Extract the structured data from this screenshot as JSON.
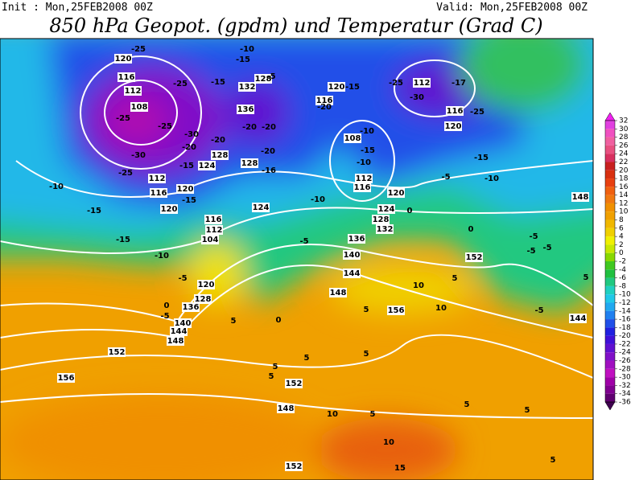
{
  "header": {
    "init": "Init : Mon,25FEB2008 00Z",
    "valid": "Valid: Mon,25FEB2008 00Z",
    "title": "850 hPa Geopot. (gpdm) und Temperatur (Grad C)"
  },
  "colorbar": {
    "ticks": [
      32,
      30,
      28,
      26,
      24,
      22,
      20,
      18,
      16,
      14,
      12,
      10,
      8,
      6,
      4,
      2,
      0,
      -2,
      -4,
      -6,
      -8,
      -10,
      -12,
      -14,
      -16,
      -18,
      -20,
      -22,
      -24,
      -26,
      -28,
      -30,
      -32,
      -34,
      -36
    ],
    "colors": [
      "#f020f0",
      "#e040e0",
      "#f050c0",
      "#f060a0",
      "#e85080",
      "#d83060",
      "#c82020",
      "#d83010",
      "#e84010",
      "#f06010",
      "#f07810",
      "#f09000",
      "#f0a000",
      "#f0b800",
      "#f0d000",
      "#f0f000",
      "#c8e800",
      "#88d800",
      "#40c820",
      "#20c040",
      "#20c880",
      "#20d0c0",
      "#20c8e8",
      "#20a8f0",
      "#2080f0",
      "#2050e8",
      "#2020e0",
      "#4010d8",
      "#6010d0",
      "#8010c8",
      "#a010c0",
      "#c010c0",
      "#a000a8",
      "#800090",
      "#600070",
      "#400050"
    ]
  },
  "geopotential_labels": [
    120,
    116,
    112,
    108,
    112,
    116,
    120,
    120,
    124,
    128,
    124,
    116,
    112,
    104,
    120,
    128,
    136,
    140,
    144,
    148,
    152,
    156,
    152,
    148,
    152,
    132,
    128,
    136,
    128,
    120,
    116,
    112,
    116,
    120,
    108,
    112,
    116,
    120,
    124,
    128,
    132,
    136,
    140,
    144,
    148,
    152,
    156,
    148,
    144
  ],
  "temperature_labels": [
    -25,
    -10,
    -15,
    -5,
    -25,
    -15,
    -25,
    -25,
    -30,
    -20,
    -30,
    -25,
    -15,
    -20,
    -15,
    -20,
    -20,
    -20,
    -16,
    -20,
    -15,
    -25,
    -30,
    -17,
    -25,
    -10,
    -15,
    -10,
    -10,
    -15,
    -10,
    -5,
    -10,
    -15,
    -15,
    -10,
    -5,
    -5,
    0,
    -5,
    5,
    0,
    10,
    5,
    10,
    5,
    -5,
    -5,
    -5,
    -5,
    5,
    5,
    5,
    5,
    10,
    5,
    5,
    5,
    10,
    15,
    5,
    5,
    0,
    0
  ]
}
